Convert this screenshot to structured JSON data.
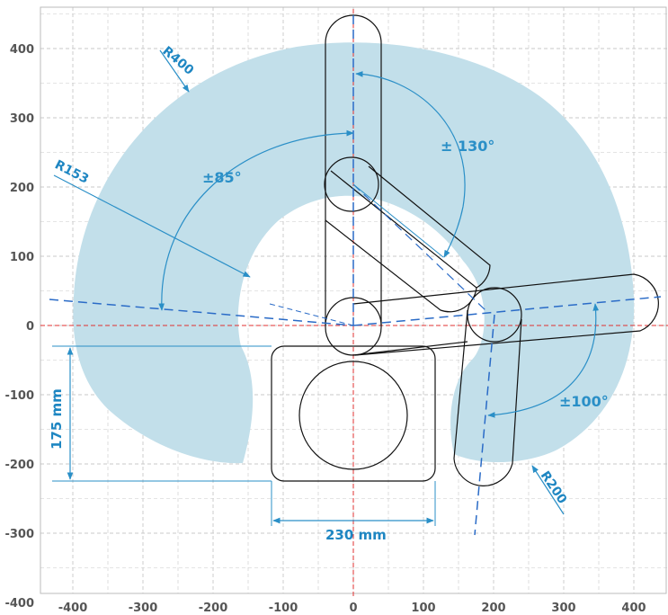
{
  "diagram": {
    "axes": {
      "x_ticks": [
        -400,
        -300,
        -200,
        -100,
        0,
        100,
        200,
        300,
        400
      ],
      "y_ticks": [
        400,
        300,
        200,
        100,
        0,
        -100,
        -200,
        -300,
        -400
      ],
      "grid": true
    },
    "annotations": {
      "r400": "R400",
      "r153": "R153",
      "r200": "R200",
      "angle_130": "± 130°",
      "angle_85": "±85°",
      "angle_100": "±100°",
      "height_175": "175 mm",
      "width_230": "230 mm"
    },
    "colors": {
      "workspace": "#c2dfea",
      "dimension": "#2a8fc7",
      "axis": "#e03030",
      "outline": "#111111",
      "grid": "#c9c9c9"
    }
  }
}
